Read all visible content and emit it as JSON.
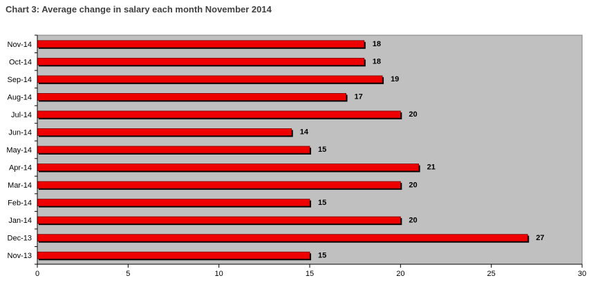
{
  "chart_data": {
    "type": "bar",
    "orientation": "horizontal",
    "title": "Chart 3: Average change in salary each month November 2014",
    "categories": [
      "Nov-14",
      "Oct-14",
      "Sep-14",
      "Aug-14",
      "Jul-14",
      "Jun-14",
      "May-14",
      "Apr-14",
      "Mar-14",
      "Feb-14",
      "Jan-14",
      "Dec-13",
      "Nov-13"
    ],
    "values": [
      18,
      18,
      19,
      17,
      20,
      14,
      15,
      21,
      20,
      15,
      20,
      27,
      15
    ],
    "data_labels": [
      "18",
      "18",
      "19",
      "17",
      "20",
      "14",
      "15",
      "21",
      "20",
      "15",
      "20",
      "27",
      "15"
    ],
    "xlim": [
      0,
      30
    ],
    "x_ticks": [
      0,
      5,
      10,
      15,
      20,
      25,
      30
    ],
    "x_tick_labels": [
      "0",
      "5",
      "10",
      "15",
      "20",
      "25",
      "30"
    ],
    "xlabel": "",
    "ylabel": "",
    "grid": false,
    "legend": "none",
    "colors": {
      "bar": "#ee0000",
      "bar_shadow": "#000000",
      "plot_background": "#c0c0c0"
    }
  }
}
